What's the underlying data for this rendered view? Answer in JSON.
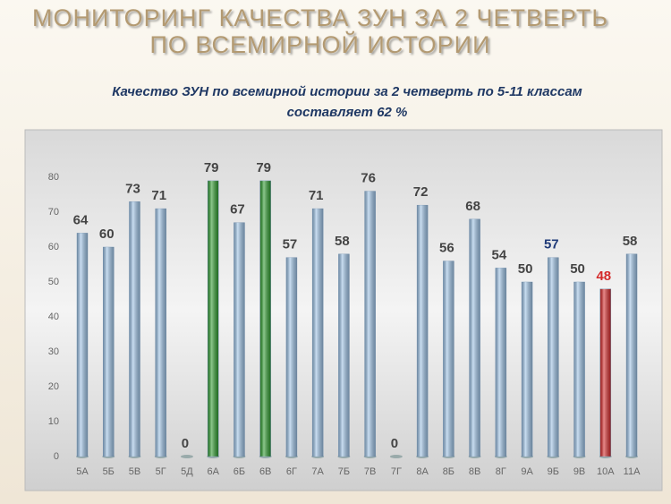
{
  "chart_data": {
    "type": "bar",
    "title": [
      "МОНИТОРИНГ  КАЧЕСТВА ЗУН ЗА 2  ЧЕТВЕРТЬ",
      "ПО  ВСЕМИРНОЙ ИСТОРИИ"
    ],
    "subtitle": [
      "Качество ЗУН по  всемирной истории  за 2 четверть  по 5-11 классам",
      "составляет  62  %"
    ],
    "categories": [
      "5А",
      "5Б",
      "5В",
      "5Г",
      "5Д",
      "6А",
      "6Б",
      "6В",
      "6Г",
      "7А",
      "7Б",
      "7В",
      "7Г",
      "8А",
      "8Б",
      "8В",
      "8Г",
      "9А",
      "9Б",
      "9В",
      "10А",
      "11А"
    ],
    "values": [
      64,
      60,
      73,
      71,
      0,
      79,
      67,
      79,
      57,
      71,
      58,
      76,
      0,
      72,
      56,
      68,
      54,
      50,
      57,
      50,
      48,
      58
    ],
    "colors": [
      "#9ec3e6",
      "#9ec3e6",
      "#9ec3e6",
      "#9ec3e6",
      "#9ec3e6",
      "#2e9a2e",
      "#9ec3e6",
      "#2e9a2e",
      "#9ec3e6",
      "#9ec3e6",
      "#9ec3e6",
      "#9ec3e6",
      "#9ec3e6",
      "#9ec3e6",
      "#9ec3e6",
      "#9ec3e6",
      "#9ec3e6",
      "#9ec3e6",
      "#9ec3e6",
      "#9ec3e6",
      "#d42a2a",
      "#9ec3e6"
    ],
    "label_colors": [
      "#444",
      "#444",
      "#444",
      "#444",
      "#444",
      "#444",
      "#444",
      "#444",
      "#444",
      "#444",
      "#444",
      "#444",
      "#444",
      "#444",
      "#444",
      "#444",
      "#444",
      "#444",
      "#1f3a78",
      "#444",
      "#d42a2a",
      "#444"
    ],
    "ylim": [
      0,
      80
    ],
    "yticks": [
      0,
      10,
      20,
      30,
      40,
      50,
      60,
      70,
      80
    ]
  }
}
